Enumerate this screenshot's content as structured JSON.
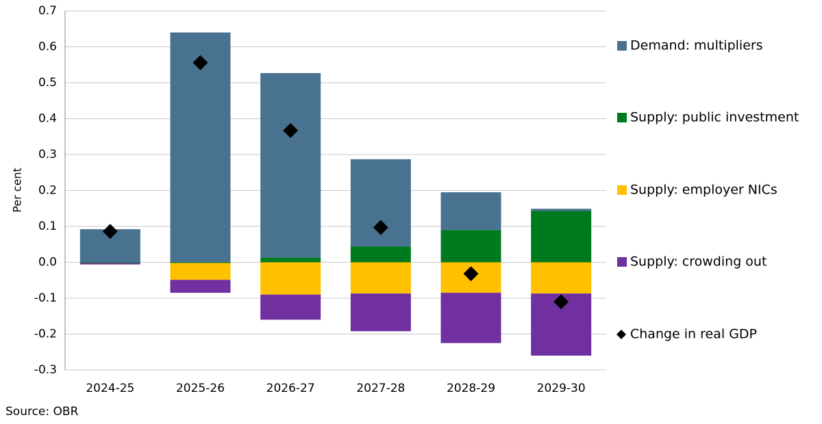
{
  "chart_data": {
    "type": "bar",
    "stacked": true,
    "ylabel": "Per cent",
    "source": "Source: OBR",
    "categories": [
      "2024-25",
      "2025-26",
      "2026-27",
      "2027-28",
      "2028-29",
      "2029-30"
    ],
    "series": [
      {
        "name": "Demand: multipliers",
        "color": "#48728f",
        "values": [
          0.092,
          0.64,
          0.514,
          0.243,
          0.105,
          0.006
        ]
      },
      {
        "name": "Supply: public investment",
        "color": "#007a1e",
        "values": [
          -0.002,
          -0.002,
          0.013,
          0.044,
          0.09,
          0.143
        ]
      },
      {
        "name": "Supply: employer NICs",
        "color": "#ffc000",
        "values": [
          0,
          -0.047,
          -0.09,
          -0.087,
          -0.085,
          -0.087
        ]
      },
      {
        "name": "Supply: crowding out",
        "color": "#7030a0",
        "values": [
          -0.004,
          -0.036,
          -0.07,
          -0.105,
          -0.14,
          -0.173
        ]
      },
      {
        "name": "Change in real GDP",
        "color": "#000000",
        "type": "scatter",
        "values": [
          0.086,
          0.556,
          0.367,
          0.097,
          -0.032,
          -0.11
        ]
      }
    ],
    "ylim": [
      -0.3,
      0.7
    ],
    "yticks": [
      -0.3,
      -0.2,
      -0.1,
      {
        "value": 0,
        "label": "0.0"
      },
      0.1,
      0.2,
      0.3,
      0.4,
      0.5,
      0.6,
      0.7
    ],
    "grid": true,
    "legend": "right"
  }
}
